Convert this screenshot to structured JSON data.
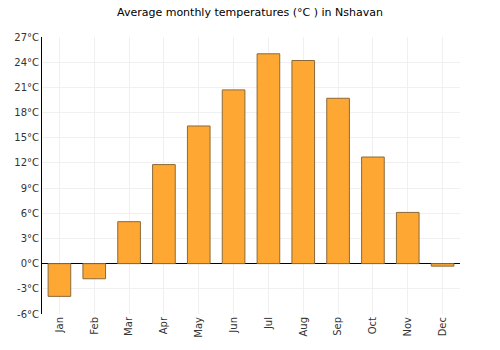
{
  "chart_data": {
    "type": "bar",
    "title": "Average monthly temperatures (°C ) in Nshavan",
    "categories": [
      "Jan",
      "Feb",
      "Mar",
      "Apr",
      "May",
      "Jun",
      "Jul",
      "Aug",
      "Sep",
      "Oct",
      "Nov",
      "Dec"
    ],
    "values": [
      -3.9,
      -1.8,
      5.0,
      11.8,
      16.4,
      20.7,
      25.0,
      24.2,
      19.7,
      12.7,
      6.1,
      -0.3
    ],
    "color": "#ffa733",
    "ylim": [
      -6,
      27
    ],
    "yticks": [
      {
        "value": -6,
        "label": "-6°C"
      },
      {
        "value": -3,
        "label": "-3°C"
      },
      {
        "value": 0,
        "label": "0°C"
      },
      {
        "value": 3,
        "label": "3°C"
      },
      {
        "value": 6,
        "label": "6°C"
      },
      {
        "value": 9,
        "label": "9°C"
      },
      {
        "value": 12,
        "label": "12°C"
      },
      {
        "value": 15,
        "label": "15°C"
      },
      {
        "value": 18,
        "label": "18°C"
      },
      {
        "value": 21,
        "label": "21°C"
      },
      {
        "value": 24,
        "label": "24°C"
      },
      {
        "value": 27,
        "label": "27°C"
      }
    ],
    "grid": true
  }
}
